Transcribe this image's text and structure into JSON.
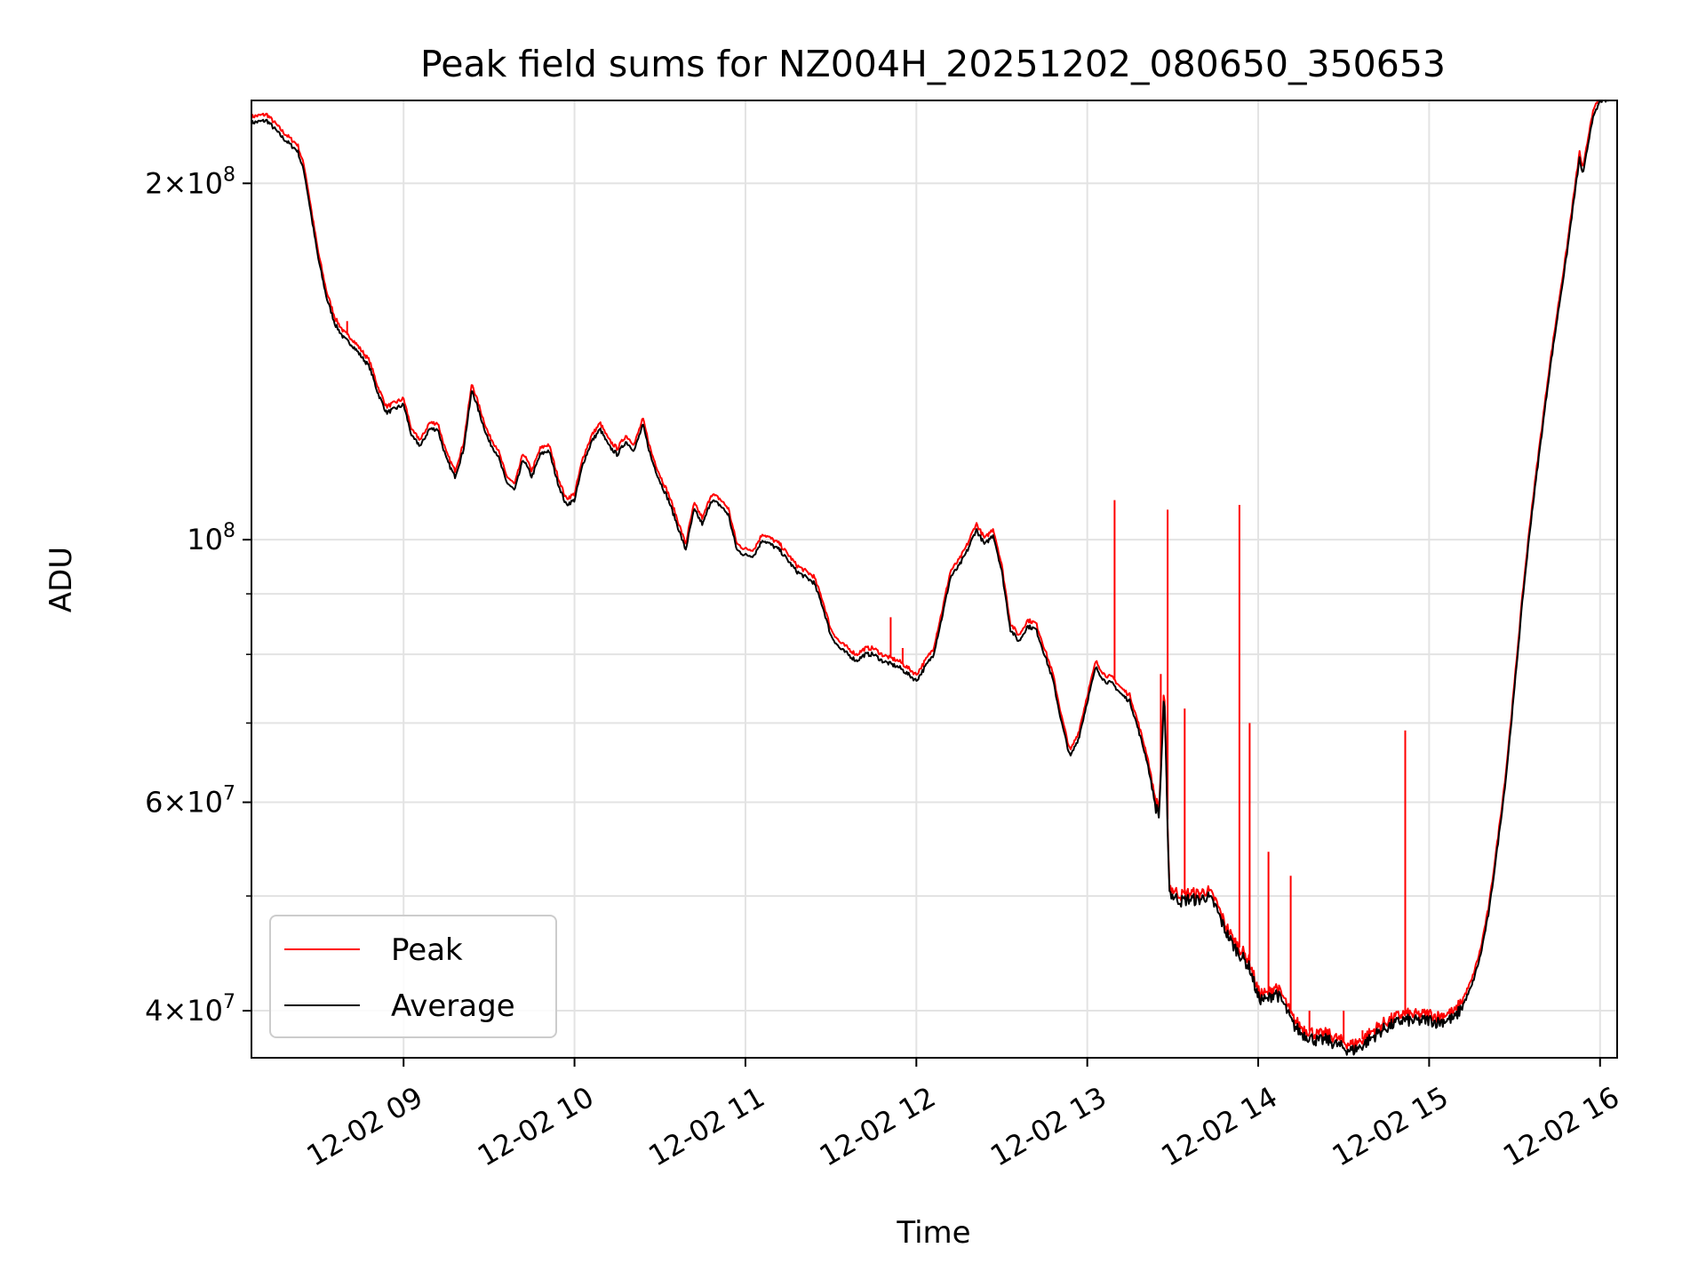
{
  "chart_data": {
    "type": "line",
    "title": "Peak field sums for NZ004H_20251202_080650_350653",
    "xlabel": "Time",
    "ylabel": "ADU",
    "yscale": "log",
    "xlim_hours": [
      8.11,
      16.1
    ],
    "ylim": [
      36500000,
      235000000
    ],
    "grid": true,
    "legend_position": "lower-left",
    "x_ticks": [
      {
        "value": 9,
        "label": "12-02 09"
      },
      {
        "value": 10,
        "label": "12-02 10"
      },
      {
        "value": 11,
        "label": "12-02 11"
      },
      {
        "value": 12,
        "label": "12-02 12"
      },
      {
        "value": 13,
        "label": "12-02 13"
      },
      {
        "value": 14,
        "label": "12-02 14"
      },
      {
        "value": 15,
        "label": "12-02 15"
      },
      {
        "value": 16,
        "label": "12-02 16"
      }
    ],
    "y_major_ticks": [
      {
        "value": 40000000,
        "mant": "4",
        "exp": "7"
      },
      {
        "value": 60000000,
        "mant": "6",
        "exp": "7"
      },
      {
        "value": 100000000,
        "mant": "",
        "exp": "8"
      },
      {
        "value": 200000000,
        "mant": "2",
        "exp": "8"
      }
    ],
    "y_minor_ticks": [
      50000000,
      70000000,
      80000000,
      90000000
    ],
    "colors": {
      "peak": "#ff0000",
      "average": "#000000"
    },
    "series": [
      {
        "name": "Average",
        "color": "#000000",
        "points": [
          [
            8.11,
            225000000
          ],
          [
            8.2,
            226000000
          ],
          [
            8.3,
            218000000
          ],
          [
            8.38,
            213000000
          ],
          [
            8.42,
            204000000
          ],
          [
            8.5,
            173000000
          ],
          [
            8.55,
            160000000
          ],
          [
            8.6,
            152000000
          ],
          [
            8.65,
            148000000
          ],
          [
            8.7,
            146000000
          ],
          [
            8.75,
            143000000
          ],
          [
            8.8,
            140000000
          ],
          [
            8.85,
            133000000
          ],
          [
            8.9,
            128000000
          ],
          [
            8.95,
            129000000
          ],
          [
            9.0,
            130000000
          ],
          [
            9.05,
            122000000
          ],
          [
            9.1,
            120000000
          ],
          [
            9.15,
            124000000
          ],
          [
            9.2,
            124000000
          ],
          [
            9.25,
            117000000
          ],
          [
            9.3,
            113000000
          ],
          [
            9.35,
            119000000
          ],
          [
            9.4,
            134000000
          ],
          [
            9.45,
            127000000
          ],
          [
            9.5,
            121000000
          ],
          [
            9.55,
            118000000
          ],
          [
            9.6,
            112000000
          ],
          [
            9.65,
            110000000
          ],
          [
            9.7,
            117000000
          ],
          [
            9.75,
            113000000
          ],
          [
            9.8,
            118000000
          ],
          [
            9.85,
            119000000
          ],
          [
            9.9,
            112000000
          ],
          [
            9.95,
            107000000
          ],
          [
            10.0,
            108000000
          ],
          [
            10.05,
            116000000
          ],
          [
            10.1,
            121000000
          ],
          [
            10.15,
            124000000
          ],
          [
            10.2,
            120000000
          ],
          [
            10.25,
            118000000
          ],
          [
            10.3,
            121000000
          ],
          [
            10.35,
            119000000
          ],
          [
            10.4,
            125000000
          ],
          [
            10.45,
            117000000
          ],
          [
            10.5,
            112000000
          ],
          [
            10.55,
            108000000
          ],
          [
            10.6,
            103000000
          ],
          [
            10.65,
            98000000
          ],
          [
            10.7,
            106000000
          ],
          [
            10.75,
            103000000
          ],
          [
            10.8,
            108000000
          ],
          [
            10.85,
            107000000
          ],
          [
            10.9,
            105000000
          ],
          [
            10.95,
            98000000
          ],
          [
            11.0,
            97000000
          ],
          [
            11.05,
            97000000
          ],
          [
            11.1,
            100000000
          ],
          [
            11.15,
            99000000
          ],
          [
            11.2,
            98000000
          ],
          [
            11.3,
            94000000
          ],
          [
            11.4,
            92000000
          ],
          [
            11.45,
            88000000
          ],
          [
            11.5,
            83000000
          ],
          [
            11.55,
            81000000
          ],
          [
            11.6,
            80000000
          ],
          [
            11.65,
            79000000
          ],
          [
            11.7,
            80000000
          ],
          [
            11.75,
            80000000
          ],
          [
            11.8,
            79000000
          ],
          [
            11.85,
            78500000
          ],
          [
            11.9,
            78000000
          ],
          [
            11.95,
            77000000
          ],
          [
            12.0,
            76000000
          ],
          [
            12.05,
            78000000
          ],
          [
            12.1,
            80000000
          ],
          [
            12.15,
            86000000
          ],
          [
            12.2,
            93000000
          ],
          [
            12.25,
            95000000
          ],
          [
            12.3,
            98000000
          ],
          [
            12.35,
            102000000
          ],
          [
            12.4,
            99000000
          ],
          [
            12.45,
            101000000
          ],
          [
            12.5,
            94000000
          ],
          [
            12.55,
            84000000
          ],
          [
            12.6,
            82000000
          ],
          [
            12.65,
            84500000
          ],
          [
            12.7,
            84000000
          ],
          [
            12.75,
            80000000
          ],
          [
            12.8,
            76000000
          ],
          [
            12.85,
            70000000
          ],
          [
            12.9,
            65500000
          ],
          [
            12.95,
            68000000
          ],
          [
            13.0,
            73000000
          ],
          [
            13.05,
            78000000
          ],
          [
            13.1,
            76000000
          ],
          [
            13.15,
            75500000
          ],
          [
            13.2,
            74000000
          ],
          [
            13.25,
            73000000
          ],
          [
            13.3,
            69000000
          ],
          [
            13.35,
            65000000
          ],
          [
            13.4,
            59500000
          ],
          [
            13.42,
            58500000
          ],
          [
            13.45,
            74000000
          ],
          [
            13.48,
            50500000
          ],
          [
            13.5,
            50000000
          ],
          [
            13.55,
            49500000
          ],
          [
            13.6,
            49700000
          ],
          [
            13.65,
            49600000
          ],
          [
            13.7,
            50000000
          ],
          [
            13.75,
            49000000
          ],
          [
            13.8,
            47000000
          ],
          [
            13.85,
            45500000
          ],
          [
            13.9,
            44500000
          ],
          [
            13.95,
            43500000
          ],
          [
            14.0,
            41000000
          ],
          [
            14.05,
            40800000
          ],
          [
            14.1,
            41500000
          ],
          [
            14.15,
            40500000
          ],
          [
            14.2,
            39000000
          ],
          [
            14.25,
            38300000
          ],
          [
            14.3,
            38000000
          ],
          [
            14.35,
            37700000
          ],
          [
            14.4,
            37800000
          ],
          [
            14.45,
            37500000
          ],
          [
            14.5,
            37200000
          ],
          [
            14.55,
            37000000
          ],
          [
            14.6,
            37300000
          ],
          [
            14.65,
            37800000
          ],
          [
            14.7,
            38300000
          ],
          [
            14.75,
            38700000
          ],
          [
            14.8,
            39000000
          ],
          [
            14.85,
            39300000
          ],
          [
            14.9,
            39200000
          ],
          [
            14.95,
            39200000
          ],
          [
            15.0,
            39300000
          ],
          [
            15.05,
            39100000
          ],
          [
            15.1,
            39300000
          ],
          [
            15.15,
            39400000
          ],
          [
            15.2,
            40500000
          ],
          [
            15.25,
            42000000
          ],
          [
            15.3,
            44500000
          ],
          [
            15.35,
            48500000
          ],
          [
            15.4,
            55000000
          ],
          [
            15.45,
            63000000
          ],
          [
            15.5,
            75000000
          ],
          [
            15.55,
            90000000
          ],
          [
            15.6,
            105000000
          ],
          [
            15.65,
            120000000
          ],
          [
            15.7,
            137000000
          ],
          [
            15.75,
            154000000
          ],
          [
            15.8,
            172000000
          ],
          [
            15.85,
            195000000
          ],
          [
            15.88,
            210000000
          ],
          [
            15.9,
            203000000
          ],
          [
            15.95,
            225000000
          ],
          [
            16.0,
            235000000
          ],
          [
            16.05,
            235000000
          ]
        ]
      },
      {
        "name": "Peak",
        "color": "#ff0000",
        "baseline_ratio": 1.012,
        "spikes": [
          [
            8.67,
            153000000
          ],
          [
            11.85,
            86000000
          ],
          [
            11.92,
            81000000
          ],
          [
            13.16,
            108000000
          ],
          [
            13.43,
            77000000
          ],
          [
            13.47,
            106000000
          ],
          [
            13.57,
            72000000
          ],
          [
            13.89,
            107000000
          ],
          [
            13.95,
            70000000
          ],
          [
            14.06,
            54500000
          ],
          [
            14.19,
            52000000
          ],
          [
            14.3,
            40000000
          ],
          [
            14.5,
            40000000
          ],
          [
            14.61,
            38500000
          ],
          [
            14.86,
            69000000
          ]
        ]
      }
    ]
  }
}
